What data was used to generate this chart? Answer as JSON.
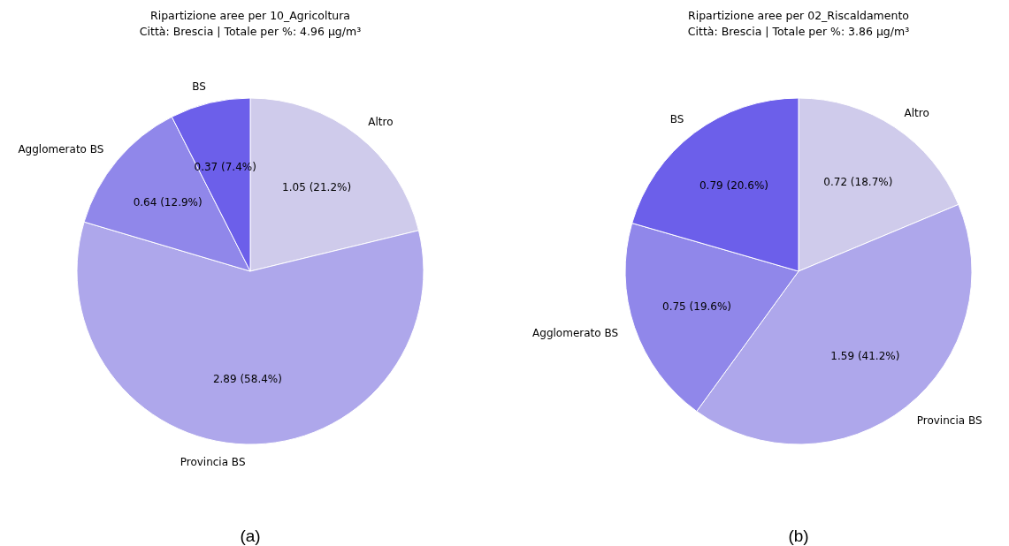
{
  "chart_data": [
    {
      "type": "pie",
      "title": "Ripartizione aree per 10_Agricoltura",
      "subtitle": "Città: Brescia | Totale per %: 4.96 µg/m³",
      "categories": [
        "Altro",
        "Provincia BS",
        "Agglomerato BS",
        "BS"
      ],
      "values": [
        1.05,
        2.89,
        0.64,
        0.37
      ],
      "colors": [
        "#cfcbeb",
        "#aea7eb",
        "#9087ea",
        "#6c5fea"
      ],
      "value_labels": [
        "1.05 (21.2%)",
        "2.89 (58.4%)",
        "0.64 (12.9%)",
        "0.37 (7.4%)"
      ],
      "annotations": [
        "(a)"
      ],
      "legend": false
    },
    {
      "type": "pie",
      "title": "Ripartizione aree per 02_Riscaldamento",
      "subtitle": "Città: Brescia | Totale per %: 3.86 µg/m³",
      "categories": [
        "Altro",
        "Provincia BS",
        "Agglomerato BS",
        "BS"
      ],
      "values": [
        0.72,
        1.59,
        0.75,
        0.79
      ],
      "colors": [
        "#cfcbeb",
        "#aea7eb",
        "#9087ea",
        "#6c5fea"
      ],
      "value_labels": [
        "0.72 (18.7%)",
        "1.59 (41.2%)",
        "0.75 (19.6%)",
        "0.79 (20.6%)"
      ],
      "annotations": [
        "(b)"
      ],
      "legend": false
    }
  ]
}
